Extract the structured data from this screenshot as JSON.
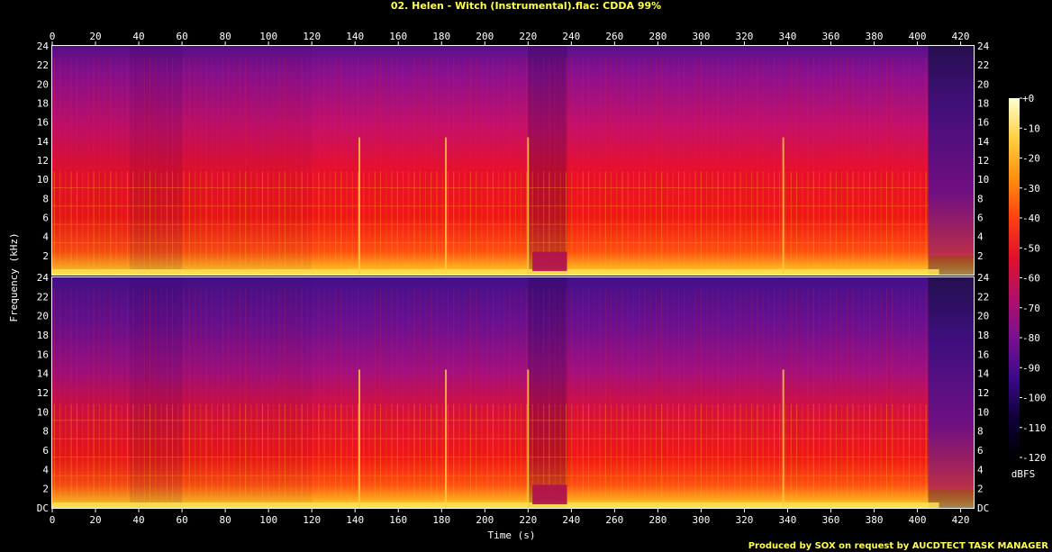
{
  "chart_data": {
    "type": "heatmap",
    "title": "02. Helen - Witch (Instrumental).flac: CDDA 99%",
    "xlabel": "Time (s)",
    "ylabel": "Frequency (kHz)",
    "xlim": [
      0,
      426
    ],
    "ylim": [
      0,
      24
    ],
    "x_ticks": [
      "0",
      "20",
      "40",
      "60",
      "80",
      "100",
      "120",
      "140",
      "160",
      "180",
      "200",
      "220",
      "240",
      "260",
      "280",
      "300",
      "320",
      "340",
      "360",
      "380",
      "400",
      "420"
    ],
    "y_ticks_top": [
      "24",
      "22",
      "20",
      "18",
      "16",
      "14",
      "12",
      "10",
      "8",
      "6",
      "4",
      "2"
    ],
    "y_ticks_bottom": [
      "24",
      "22",
      "20",
      "18",
      "16",
      "14",
      "12",
      "10",
      "8",
      "6",
      "4",
      "2",
      "DC"
    ],
    "channels": 2,
    "colorbar": {
      "label": "dBFS",
      "ticks": [
        "+0",
        "-10",
        "-20",
        "-30",
        "-40",
        "-50",
        "-60",
        "-70",
        "-80",
        "-90",
        "-100",
        "-110",
        "-120"
      ],
      "range": [
        -120,
        0
      ],
      "colors": [
        "#000000",
        "#10003a",
        "#3a0a8a",
        "#7a1090",
        "#b0106a",
        "#e0102a",
        "#ff4010",
        "#ff9010",
        "#ffd040",
        "#ffffd0"
      ]
    },
    "sections": [
      {
        "t0": 0,
        "t1": 36,
        "level": 0.55
      },
      {
        "t0": 36,
        "t1": 60,
        "level": 0.45
      },
      {
        "t0": 60,
        "t1": 120,
        "level": 0.55
      },
      {
        "t0": 120,
        "t1": 220,
        "level": 0.62
      },
      {
        "t0": 220,
        "t1": 238,
        "level": 0.35
      },
      {
        "t0": 238,
        "t1": 338,
        "level": 0.6
      },
      {
        "t0": 338,
        "t1": 405,
        "level": 0.68
      },
      {
        "t0": 405,
        "t1": 426,
        "level": 0.2
      }
    ],
    "transients": [
      142,
      182,
      220,
      338
    ],
    "credit": "Produced by SOX on request by AUCDTECT TASK MANAGER"
  }
}
